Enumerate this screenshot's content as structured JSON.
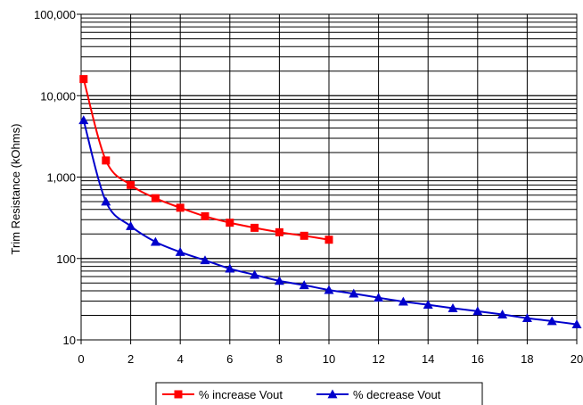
{
  "chart_data": {
    "type": "line",
    "title": "",
    "xlabel": "",
    "ylabel": "Trim Resistance (kOhms)",
    "xlim": [
      0,
      20
    ],
    "ylim": [
      10,
      100000
    ],
    "y_scale": "log",
    "grid": true,
    "legend_position": "bottom",
    "x_ticks": [
      "0",
      "2",
      "4",
      "6",
      "8",
      "10",
      "12",
      "14",
      "16",
      "18",
      "20"
    ],
    "y_ticks": [
      "10",
      "100",
      "1,000",
      "10,000",
      "100,000"
    ],
    "series": [
      {
        "name": "% increase Vout",
        "color": "#ff0000",
        "marker": "square",
        "x": [
          0.1,
          1,
          2,
          3,
          4,
          5,
          6,
          7,
          8,
          9,
          10
        ],
        "values": [
          16000,
          1600,
          800,
          550,
          420,
          330,
          275,
          238,
          210,
          190,
          170
        ]
      },
      {
        "name": "% decrease Vout",
        "color": "#0000cc",
        "marker": "triangle",
        "x": [
          0.1,
          1,
          2,
          3,
          4,
          5,
          6,
          7,
          8,
          9,
          10,
          11,
          12,
          13,
          14,
          15,
          16,
          17,
          18,
          19,
          20
        ],
        "values": [
          5000,
          500,
          250,
          160,
          120,
          95,
          75,
          63,
          53,
          47,
          41,
          37,
          33,
          29.5,
          27,
          24.5,
          22.5,
          20.5,
          18.5,
          17,
          15.5
        ]
      }
    ]
  }
}
